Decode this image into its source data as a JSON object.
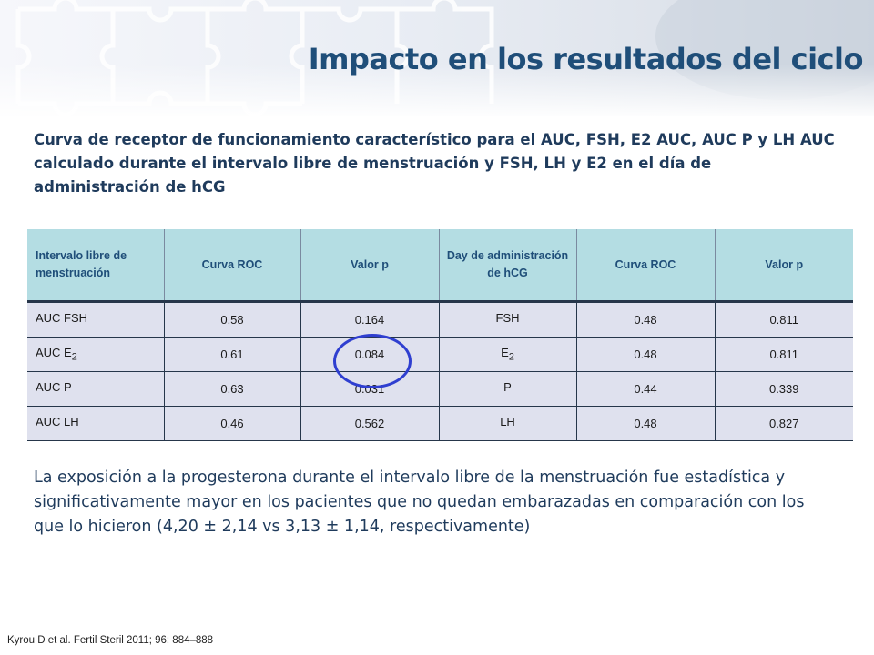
{
  "title": "Impacto en los resultados del ciclo",
  "subtitle": "Curva de receptor de funcionamiento característico para el AUC, FSH, E2 AUC, AUC P y LH AUC calculado durante el intervalo libre de menstruación y FSH, LH y E2 en el día de administración de hCG",
  "table": {
    "headers": [
      "Intervalo libre de menstruación",
      "Curva ROC",
      "Valor p",
      "Day de administración de hCG",
      "Curva ROC",
      "Valor p"
    ],
    "rows": [
      {
        "m_label": "AUC FSH",
        "m_sub": "",
        "m_roc": "0.58",
        "m_p": "0.164",
        "d_label": "FSH",
        "d_sub": "",
        "d_roc": "0.48",
        "d_p": "0.811"
      },
      {
        "m_label": "AUC E",
        "m_sub": "2",
        "m_roc": "0.61",
        "m_p": "0.084",
        "d_label": "E",
        "d_sub": "2",
        "d_roc": "0.48",
        "d_p": "0.811"
      },
      {
        "m_label": "AUC P",
        "m_sub": "",
        "m_roc": "0.63",
        "m_p": "0.031",
        "d_label": "P",
        "d_sub": "",
        "d_roc": "0.44",
        "d_p": "0.339"
      },
      {
        "m_label": "AUC LH",
        "m_sub": "",
        "m_roc": "0.46",
        "m_p": "0.562",
        "d_label": "LH",
        "d_sub": "",
        "d_roc": "0.48",
        "d_p": "0.827"
      }
    ]
  },
  "conclusion": "La exposición a la progesterona durante el intervalo libre de la menstruación fue estadística y significativamente mayor en los pacientes que no quedan embarazadas en comparación con los que lo hicieron (4,20 ± 2,14 vs 3,13 ± 1,14, respectivamente)",
  "citation": "Kyrou D et al. Fertil Steril 2011;  96: 884–888",
  "colors": {
    "title": "#1f4e79",
    "header_bg": "#b4dde3",
    "cell_bg": "#dfe1ee",
    "highlight_circle": "#2f3fd0"
  }
}
